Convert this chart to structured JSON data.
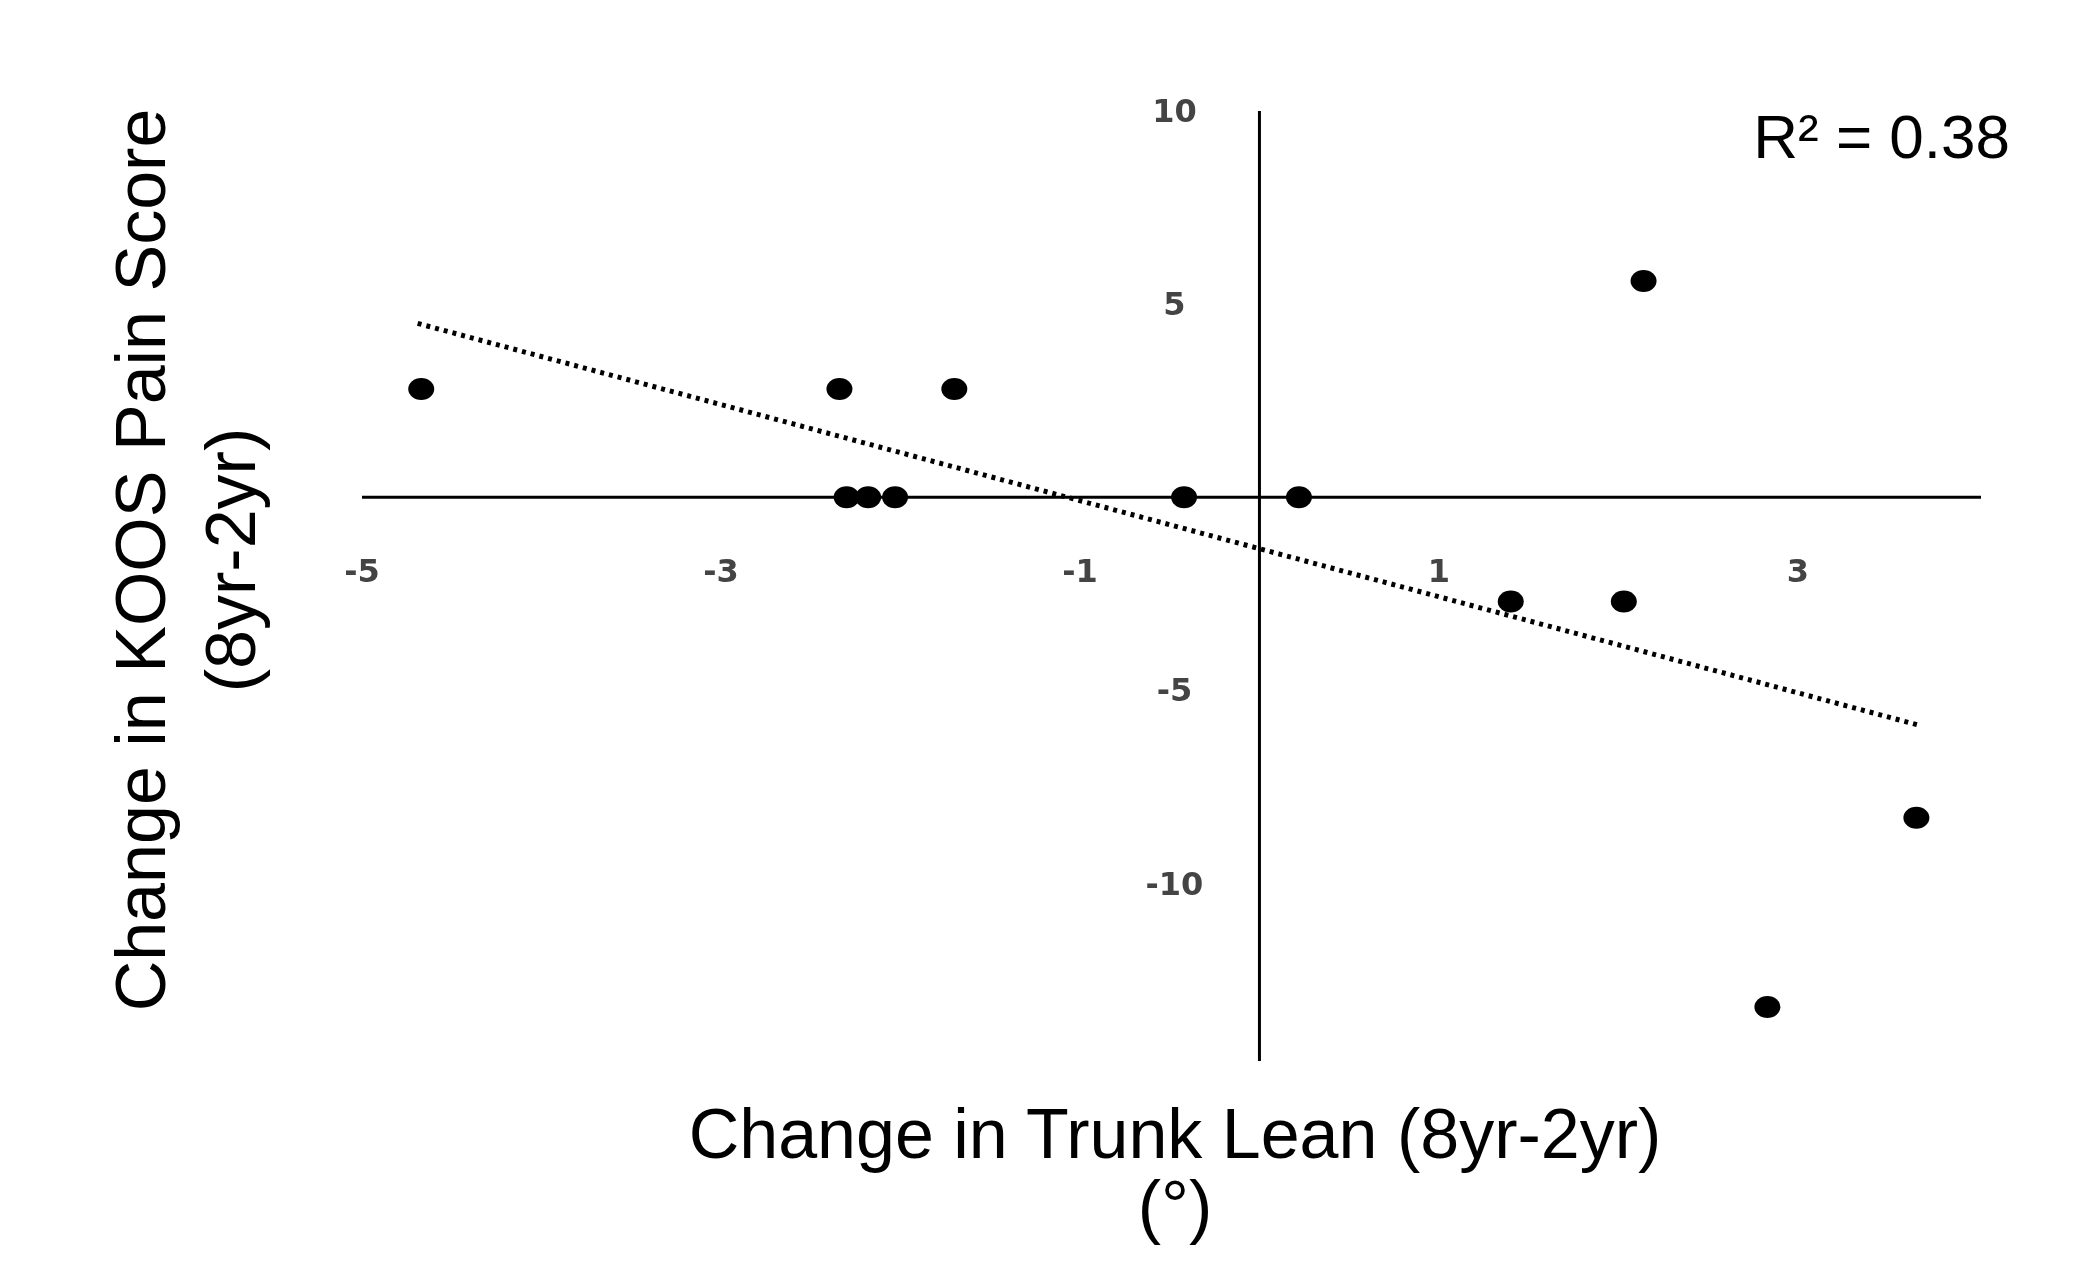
{
  "chart_data": {
    "type": "scatter",
    "xlabel": "Change in Trunk Lean (8yr-2yr) (°)",
    "ylabel": "Change in KOOS Pain Score (8yr-2yr)",
    "annotations": [
      "R² = 0.38"
    ],
    "xlim": [
      -5,
      4.02
    ],
    "ylim": [
      -14.6,
      10
    ],
    "xticks": [
      -5,
      -3,
      -1,
      1,
      3
    ],
    "yticks": [
      10,
      5,
      -5,
      -10
    ],
    "series": [
      {
        "color": "#000000",
        "marker": "circle",
        "x": [
          -4.67,
          -2.34,
          -1.7,
          -2.3,
          -2.18,
          -2.03,
          -0.42,
          0.22,
          2.14,
          1.4,
          2.03,
          3.66,
          2.83
        ],
        "values": [
          2.8,
          2.8,
          2.8,
          0,
          0,
          0,
          0,
          0,
          5.6,
          -2.7,
          -2.7,
          -8.3,
          -13.2
        ]
      },
      {
        "type": "line",
        "color": "#000000",
        "marker": "none",
        "line_style": "dotted",
        "x": [
          -4.69,
          3.67
        ],
        "values": [
          4.5,
          -5.9
        ]
      }
    ]
  }
}
